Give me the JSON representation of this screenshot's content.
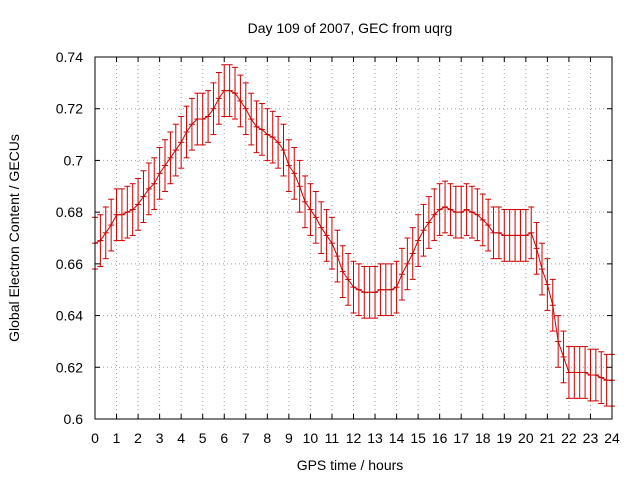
{
  "chart_data": {
    "type": "line",
    "title": "Day 109 of 2007, GEC from uqrg",
    "xlabel": "GPS time / hours",
    "ylabel": "Global Electron Content / GECUs",
    "xlim": [
      0,
      24
    ],
    "ylim": [
      0.6,
      0.74
    ],
    "grid": true,
    "x_ticks": [
      "0",
      "1",
      "2",
      "3",
      "4",
      "5",
      "6",
      "7",
      "8",
      "9",
      "10",
      "11",
      "12",
      "13",
      "14",
      "15",
      "16",
      "17",
      "18",
      "19",
      "20",
      "21",
      "22",
      "23",
      "24"
    ],
    "y_ticks": [
      "0.6",
      "0.62",
      "0.64",
      "0.66",
      "0.68",
      "0.7",
      "0.72",
      "0.74"
    ],
    "color": "#cc0000",
    "series": [
      {
        "x": [
          0,
          0.25,
          0.5,
          0.75,
          1,
          1.25,
          1.5,
          1.75,
          2,
          2.25,
          2.5,
          2.75,
          3,
          3.25,
          3.5,
          3.75,
          4,
          4.25,
          4.5,
          4.75,
          5,
          5.25,
          5.5,
          5.75,
          6,
          6.25,
          6.5,
          6.75,
          7,
          7.25,
          7.5,
          7.75,
          8,
          8.25,
          8.5,
          8.75,
          9,
          9.25,
          9.5,
          9.75,
          10,
          10.25,
          10.5,
          10.75,
          11,
          11.25,
          11.5,
          11.75,
          12,
          12.25,
          12.5,
          12.75,
          13,
          13.25,
          13.5,
          13.75,
          14,
          14.25,
          14.5,
          14.75,
          15,
          15.25,
          15.5,
          15.75,
          16,
          16.25,
          16.5,
          16.75,
          17,
          17.25,
          17.5,
          17.75,
          18,
          18.25,
          18.5,
          18.75,
          19,
          19.25,
          19.5,
          19.75,
          20,
          20.25,
          20.5,
          20.75,
          21,
          21.25,
          21.5,
          21.75,
          22,
          22.25,
          22.5,
          22.75,
          23,
          23.25,
          23.5,
          23.75,
          24
        ],
        "y": [
          0.668,
          0.669,
          0.672,
          0.675,
          0.679,
          0.679,
          0.68,
          0.681,
          0.683,
          0.686,
          0.689,
          0.691,
          0.695,
          0.698,
          0.701,
          0.704,
          0.707,
          0.711,
          0.714,
          0.716,
          0.716,
          0.717,
          0.72,
          0.724,
          0.727,
          0.727,
          0.726,
          0.723,
          0.72,
          0.716,
          0.713,
          0.712,
          0.71,
          0.709,
          0.707,
          0.704,
          0.698,
          0.695,
          0.69,
          0.684,
          0.681,
          0.678,
          0.674,
          0.671,
          0.668,
          0.663,
          0.657,
          0.654,
          0.651,
          0.65,
          0.649,
          0.649,
          0.649,
          0.65,
          0.65,
          0.65,
          0.651,
          0.656,
          0.66,
          0.664,
          0.669,
          0.673,
          0.676,
          0.679,
          0.681,
          0.682,
          0.681,
          0.68,
          0.68,
          0.681,
          0.68,
          0.679,
          0.677,
          0.675,
          0.672,
          0.672,
          0.671,
          0.671,
          0.671,
          0.671,
          0.671,
          0.672,
          0.666,
          0.658,
          0.652,
          0.644,
          0.63,
          0.624,
          0.618,
          0.618,
          0.618,
          0.618,
          0.617,
          0.617,
          0.616,
          0.615,
          0.615
        ],
        "error": 0.01
      }
    ]
  }
}
